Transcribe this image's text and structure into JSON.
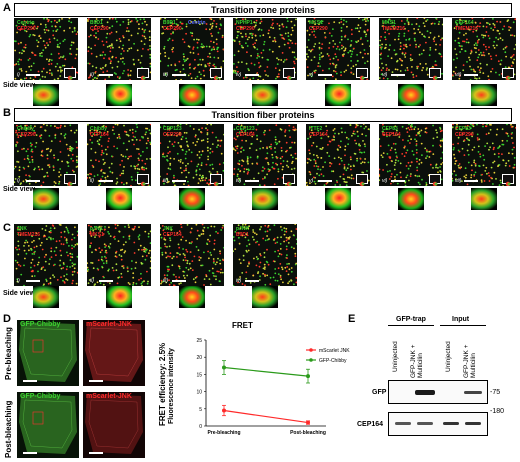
{
  "panels": {
    "A": {
      "letter": "A",
      "title": "Transition zone proteins",
      "tiles": [
        {
          "top": "Centrin",
          "top_color": "green",
          "bot": "CEP290",
          "roman": "i)"
        },
        {
          "top": "B9D1",
          "top_color": "green",
          "bot": "CEP290",
          "roman": "ii)"
        },
        {
          "top": "B9D1",
          "top_color": "green",
          "bot": "CEP290",
          "extra": "Centrin",
          "roman": "iii)"
        },
        {
          "top": "NPHP1",
          "top_color": "green",
          "bot": "CEP290",
          "roman": "iv)"
        },
        {
          "top": "MKS1",
          "top_color": "green",
          "bot": "CEP290",
          "roman": "v)"
        },
        {
          "top": "MKS1",
          "top_color": "green",
          "bot": "TMEM216",
          "roman": "vi)"
        },
        {
          "top": "CEP164",
          "top_color": "green",
          "bot": "TMEM216",
          "roman": "vii)"
        }
      ],
      "side_label": "Side view"
    },
    "B": {
      "letter": "B",
      "title": "Transition fiber proteins",
      "tiles": [
        {
          "top": "Chibby",
          "bot": "CEP290",
          "roman": "i)"
        },
        {
          "top": "Chibby",
          "bot": "CEP164",
          "roman": "ii)"
        },
        {
          "top": "CEP123",
          "bot": "CEP290",
          "roman": "iii)"
        },
        {
          "top": "CEP123",
          "bot": "CEP164",
          "roman": "iv)"
        },
        {
          "top": "ITTF2",
          "bot": "CEP164",
          "roman": "v)"
        },
        {
          "top": "CEP83",
          "bot": "CEP164",
          "roman": "vi)"
        },
        {
          "top": "CEP83",
          "bot": "CEP290",
          "roman": "vii)"
        }
      ],
      "side_label": "Side view"
    },
    "C": {
      "letter": "C",
      "tiles": [
        {
          "top": "JNK",
          "bot": "TMEM216",
          "roman": "i)"
        },
        {
          "top": "pJNK",
          "bot": "MKS1",
          "roman": "ii)"
        },
        {
          "top": "JNK",
          "bot": "CEP164",
          "roman": "iii)"
        },
        {
          "top": "pJNK",
          "bot": "B9D1",
          "roman": "iv)"
        }
      ],
      "side_label": "Side view"
    },
    "D": {
      "letter": "D",
      "row_labels": [
        "Pre-bleaching",
        "Post-bleaching"
      ],
      "col_labels": [
        "GFP-Chibby",
        "mScarlet-JNK"
      ],
      "efficiency_label": "FRET efficiency: 2.5%"
    },
    "E": {
      "letter": "E",
      "groups": [
        "GFP-trap",
        "Input"
      ],
      "lanes": [
        "Uninjected",
        "GFP-JNK + Multicilin",
        "Uninjected",
        "GFP-JNK + Multicilin"
      ],
      "rows": [
        "GFP",
        "CEP164"
      ],
      "markers": [
        "-75",
        "-180"
      ]
    }
  },
  "colors": {
    "green": "#3bd12f",
    "red": "#ff2a2a",
    "blue": "#5a6cff"
  },
  "chart_data": {
    "type": "line",
    "title": "FRET",
    "ylabel": "Fluorescence intensity",
    "categories": [
      "Pre-bleaching",
      "Post-bleaching"
    ],
    "ylim": [
      0,
      25
    ],
    "yticks": [
      0,
      5,
      10,
      15,
      20,
      25
    ],
    "series": [
      {
        "name": "mScarlet JNK",
        "color": "#ff2a2a",
        "values": [
          4.5,
          1.0
        ],
        "errors": [
          1.5,
          0.5
        ]
      },
      {
        "name": "GFP-Chibby",
        "color": "#2a9a1a",
        "values": [
          17.0,
          14.5
        ],
        "errors": [
          2.0,
          2.0
        ]
      }
    ]
  }
}
